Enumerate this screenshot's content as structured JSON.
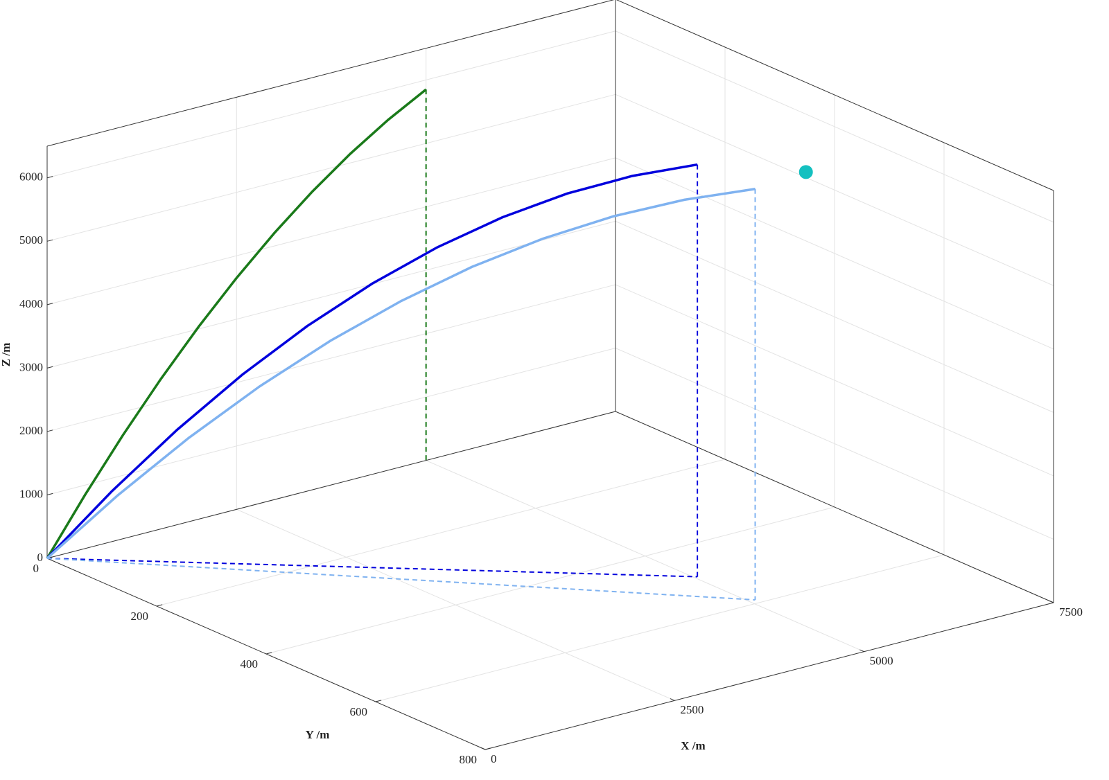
{
  "chart_data": {
    "type": "line3d",
    "xlabel": "X /m",
    "ylabel": "Y /m",
    "zlabel": "Z /m",
    "xlim": [
      0,
      7500
    ],
    "ylim": [
      0,
      800
    ],
    "zlim": [
      0,
      6500
    ],
    "xticks": [
      0,
      2500,
      5000,
      7500
    ],
    "yticks": [
      0,
      200,
      400,
      600,
      800
    ],
    "zticks": [
      0,
      1000,
      2000,
      3000,
      4000,
      5000,
      6000
    ],
    "grid": true,
    "series": [
      {
        "color": "#1a7a1a",
        "ground_track": false,
        "x": [
          0,
          500,
          1000,
          1500,
          2000,
          2500,
          3000,
          3500,
          4000,
          4500,
          5000
        ],
        "y": [
          0,
          0,
          0,
          0,
          0,
          0,
          0,
          0,
          0,
          0,
          0
        ],
        "z": [
          0,
          846,
          1634,
          2364,
          3036,
          3650,
          4206,
          4704,
          5144,
          5526,
          5850
        ]
      },
      {
        "color": "#0000dd",
        "ground_track": true,
        "x": [
          0,
          504,
          1008,
          1512,
          2016,
          2520,
          3024,
          3528,
          4032,
          4536,
          5040
        ],
        "y": [
          0,
          49,
          98,
          147,
          196,
          245,
          294,
          343,
          392,
          441,
          490
        ],
        "z": [
          0,
          1092,
          2086,
          2982,
          3779,
          4478,
          5079,
          5581,
          5986,
          6292,
          6500
        ]
      },
      {
        "color": "#7fb2f0",
        "ground_track": true,
        "x": [
          0,
          508,
          1016,
          1524,
          2032,
          2540,
          3048,
          3556,
          4064,
          4572,
          5080
        ],
        "y": [
          0,
          59,
          118,
          177,
          236,
          295,
          354,
          413,
          472,
          531,
          590
        ],
        "z": [
          0,
          1061,
          2030,
          2907,
          3692,
          4386,
          4989,
          5499,
          5918,
          6244,
          6480
        ]
      }
    ],
    "markers": [
      {
        "color": "#14c0c0",
        "x": [
          6400
        ],
        "y": [
          500
        ],
        "z": [
          6000
        ]
      }
    ]
  }
}
